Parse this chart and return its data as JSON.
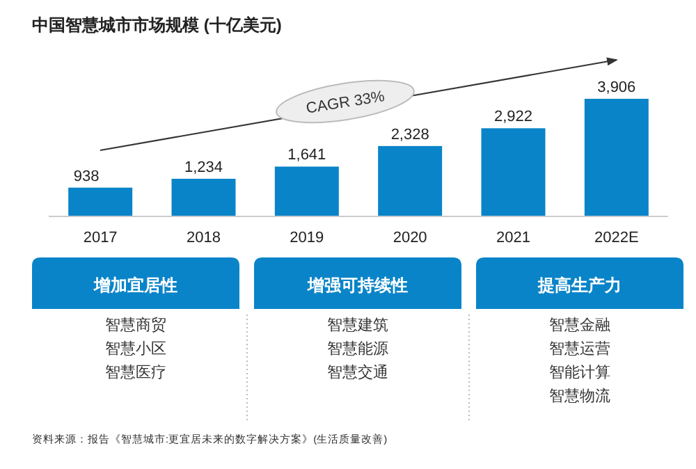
{
  "chart_data": [
    {
      "type": "bar",
      "title": "中国智慧城市市场规模 (十亿美元)",
      "categories": [
        "2017",
        "2018",
        "2019",
        "2020",
        "2021",
        "2022E"
      ],
      "values": [
        938,
        1234,
        1641,
        2328,
        2922,
        3906
      ],
      "value_labels": [
        "938",
        "1,234",
        "1,641",
        "2,328",
        "2,922",
        "3,906"
      ],
      "color": "#0a84c8",
      "annotations": [
        "CAGR 33%",
        "资料来源：报告《智慧城市:更宜居未来的数字解决方案》(生活质量改善)"
      ]
    },
    {
      "type": "other",
      "title": "增加宜居性",
      "annotations": [
        "智慧商贸",
        "智慧小区",
        "智慧医疗"
      ]
    },
    {
      "type": "other",
      "title": "增强可持续性",
      "annotations": [
        "智慧建筑",
        "智慧能源",
        "智慧交通"
      ]
    },
    {
      "type": "other",
      "title": "提高生产力",
      "annotations": [
        "智慧金融",
        "智慧运营",
        "智能计算",
        "智慧物流"
      ]
    }
  ]
}
